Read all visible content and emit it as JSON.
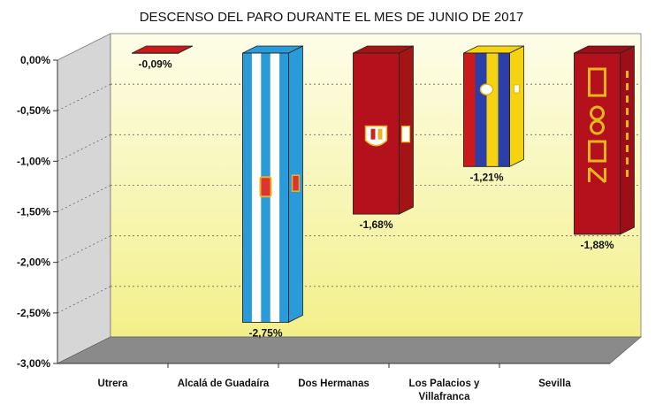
{
  "chart_data": {
    "type": "bar",
    "title": "DESCENSO DEL PARO DURANTE EL MES DE JUNIO DE 2017",
    "categories": [
      [
        "Utrera"
      ],
      [
        "Alcalá de Guadaíra"
      ],
      [
        "Dos Hermanas"
      ],
      [
        "Los Palacios y",
        "Villafranca"
      ],
      [
        "Sevilla"
      ]
    ],
    "values": [
      -0.09,
      -2.75,
      -1.68,
      -1.21,
      -1.88
    ],
    "data_labels": [
      "-0,09%",
      "-2,75%",
      "-1,68%",
      "-1,21%",
      "-1,88%"
    ],
    "y_ticks": [
      "0,00%",
      "-0,50%",
      "-1,00%",
      "-1,50%",
      "-2,00%",
      "-2,50%",
      "-3,00%"
    ],
    "ylim": [
      -3.0,
      0.0
    ],
    "grid": true,
    "bar_styles": [
      "utrera-flag",
      "alcala-flag",
      "dos-hermanas-flag",
      "los-palacios-flag",
      "sevilla-flag"
    ],
    "colors": {
      "wall_top": "#fdfde8",
      "wall_bottom": "#f3f08a",
      "side_wall": "#d6d6d6",
      "floor": "#8a8a8a",
      "flag_red": "#cc1a1a",
      "flag_yellow": "#f5d311",
      "flag_blue": "#2c3fa8",
      "flag_lightblue": "#2a9ad9",
      "flag_maroon": "#b5111d",
      "gold": "#e8b61c"
    }
  }
}
